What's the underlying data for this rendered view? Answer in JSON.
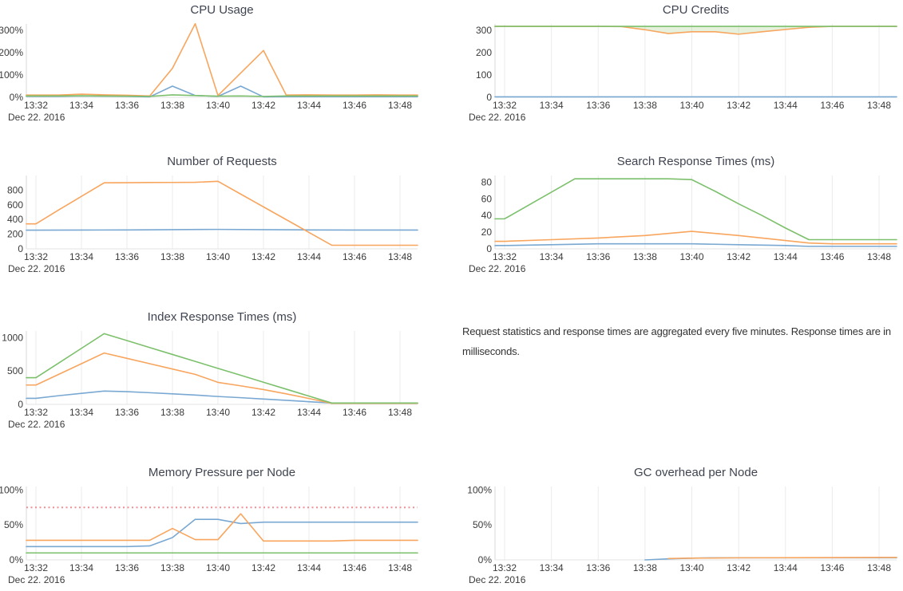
{
  "page": {
    "date_label": "Dec 22. 2016",
    "note": "Request statistics and response times are aggregated every five minutes. Response times are in milliseconds."
  },
  "colors": {
    "blue": "#79a8d2",
    "orange": "#f8a55e",
    "green": "#7cc06c",
    "red_dashed": "#ef8e95",
    "title_text": "#3f4450",
    "tick_text": "#3a3a3a",
    "grid": "#ebebeb",
    "axis": "#d9d9d9",
    "credits_fill": "rgba(150,200,120,0.25)"
  },
  "x_ticks": [
    "13:32",
    "13:34",
    "13:36",
    "13:38",
    "13:40",
    "13:42",
    "13:44",
    "13:46",
    "13:48"
  ],
  "chart_data": [
    {
      "type": "line",
      "id": "cpu-usage",
      "title": "CPU Usage",
      "col": 1,
      "grid": false,
      "vmax": 329,
      "y_ticks": [
        {
          "label": "0%",
          "v": 0
        },
        {
          "label": "100%",
          "v": 100
        },
        {
          "label": "200%",
          "v": 200
        },
        {
          "label": "300%",
          "v": 300
        }
      ],
      "x_unit": "minutes after 13:32",
      "series": [
        {
          "name": "node-blue",
          "color": "blue",
          "points": [
            [
              0,
              4
            ],
            [
              1,
              4
            ],
            [
              2,
              6
            ],
            [
              3,
              5
            ],
            [
              4,
              4
            ],
            [
              5,
              2
            ],
            [
              6,
              50
            ],
            [
              7,
              8
            ],
            [
              8,
              4
            ],
            [
              9,
              50
            ],
            [
              10,
              2
            ],
            [
              11,
              3
            ],
            [
              12,
              3
            ],
            [
              13,
              3
            ],
            [
              14,
              3
            ],
            [
              15,
              3
            ],
            [
              16,
              3
            ]
          ]
        },
        {
          "name": "node-orange",
          "color": "orange",
          "points": [
            [
              0,
              10
            ],
            [
              1,
              10
            ],
            [
              2,
              14
            ],
            [
              3,
              11
            ],
            [
              4,
              9
            ],
            [
              5,
              6
            ],
            [
              6,
              130
            ],
            [
              7,
              330
            ],
            [
              8,
              8
            ],
            [
              10,
              210
            ],
            [
              11,
              10
            ],
            [
              12,
              11
            ],
            [
              13,
              10
            ],
            [
              14,
              10
            ],
            [
              15,
              11
            ],
            [
              16,
              10
            ]
          ]
        },
        {
          "name": "node-green",
          "color": "green",
          "points": [
            [
              0,
              6
            ],
            [
              1,
              6
            ],
            [
              2,
              7
            ],
            [
              3,
              6
            ],
            [
              4,
              5
            ],
            [
              5,
              4
            ],
            [
              6,
              11
            ],
            [
              7,
              8
            ],
            [
              8,
              5
            ],
            [
              9,
              6
            ],
            [
              10,
              4
            ],
            [
              11,
              6
            ],
            [
              12,
              6
            ],
            [
              13,
              6
            ],
            [
              14,
              6
            ],
            [
              15,
              6
            ],
            [
              16,
              6
            ]
          ]
        }
      ]
    },
    {
      "type": "line",
      "id": "cpu-credits",
      "title": "CPU Credits",
      "col": 2,
      "grid": true,
      "vmax": 329,
      "y_ticks": [
        {
          "label": "0",
          "v": 0
        },
        {
          "label": "100",
          "v": 100
        },
        {
          "label": "200",
          "v": 200
        },
        {
          "label": "300",
          "v": 300
        }
      ],
      "fill_between": {
        "upper": 2,
        "lower": 1
      },
      "series": [
        {
          "name": "node-blue",
          "color": "blue",
          "points": [
            [
              0,
              2
            ],
            [
              16,
              2
            ]
          ]
        },
        {
          "name": "node-orange",
          "color": "orange",
          "points": [
            [
              0,
              318
            ],
            [
              4,
              318
            ],
            [
              5,
              317
            ],
            [
              6,
              303
            ],
            [
              7,
              286
            ],
            [
              8,
              294
            ],
            [
              9,
              294
            ],
            [
              10,
              283
            ],
            [
              11,
              294
            ],
            [
              12,
              304
            ],
            [
              13,
              314
            ],
            [
              14,
              318
            ],
            [
              15,
              318
            ],
            [
              16,
              318
            ]
          ]
        },
        {
          "name": "node-green",
          "color": "green",
          "points": [
            [
              0,
              318
            ],
            [
              16,
              318
            ]
          ]
        }
      ]
    },
    {
      "type": "line",
      "id": "number-of-requests",
      "title": "Number of Requests",
      "col": 1,
      "grid": true,
      "vmax": 1000,
      "y_ticks": [
        {
          "label": "0",
          "v": 0
        },
        {
          "label": "200",
          "v": 200
        },
        {
          "label": "400",
          "v": 400
        },
        {
          "label": "600",
          "v": 600
        },
        {
          "label": "800",
          "v": 800
        }
      ],
      "series": [
        {
          "name": "requests-blue",
          "color": "blue",
          "points": [
            [
              0,
              255
            ],
            [
              2,
              256
            ],
            [
              4,
              258
            ],
            [
              6,
              262
            ],
            [
              8,
              265
            ],
            [
              10,
              262
            ],
            [
              12,
              258
            ],
            [
              14,
              256
            ],
            [
              16,
              256
            ]
          ]
        },
        {
          "name": "requests-orange",
          "color": "orange",
          "points": [
            [
              0,
              340
            ],
            [
              1,
              530
            ],
            [
              2,
              715
            ],
            [
              3,
              900
            ],
            [
              4,
              902
            ],
            [
              5,
              904
            ],
            [
              6,
              905
            ],
            [
              7,
              907
            ],
            [
              8,
              920
            ],
            [
              9,
              746
            ],
            [
              10,
              572
            ],
            [
              11,
              398
            ],
            [
              12,
              224
            ],
            [
              13,
              50
            ],
            [
              14,
              49
            ],
            [
              15,
              49
            ],
            [
              16,
              49
            ]
          ]
        }
      ]
    },
    {
      "type": "line",
      "id": "search-response-times",
      "title": "Search Response Times (ms)",
      "col": 2,
      "grid": true,
      "vmax": 88,
      "y_ticks": [
        {
          "label": "0",
          "v": 0
        },
        {
          "label": "20",
          "v": 20
        },
        {
          "label": "40",
          "v": 40
        },
        {
          "label": "60",
          "v": 60
        },
        {
          "label": "80",
          "v": 80
        }
      ],
      "series": [
        {
          "name": "search-blue",
          "color": "blue",
          "points": [
            [
              0,
              4
            ],
            [
              2,
              5
            ],
            [
              4,
              6
            ],
            [
              6,
              6
            ],
            [
              8,
              6
            ],
            [
              10,
              5
            ],
            [
              12,
              4
            ],
            [
              13,
              3
            ],
            [
              16,
              3
            ]
          ]
        },
        {
          "name": "search-orange",
          "color": "orange",
          "points": [
            [
              0,
              9
            ],
            [
              2,
              11
            ],
            [
              4,
              13
            ],
            [
              6,
              16
            ],
            [
              8,
              21
            ],
            [
              10,
              16
            ],
            [
              12,
              10
            ],
            [
              13,
              7
            ],
            [
              14,
              6
            ],
            [
              16,
              6
            ]
          ]
        },
        {
          "name": "search-green",
          "color": "green",
          "points": [
            [
              0,
              36
            ],
            [
              1,
              52
            ],
            [
              2,
              68
            ],
            [
              3,
              84
            ],
            [
              7,
              84
            ],
            [
              8,
              83
            ],
            [
              9,
              69
            ],
            [
              10,
              54
            ],
            [
              11,
              40
            ],
            [
              12,
              25
            ],
            [
              13,
              11
            ],
            [
              16,
              11
            ]
          ]
        }
      ]
    },
    {
      "type": "line",
      "id": "index-response-times",
      "title": "Index Response Times (ms)",
      "col": 1,
      "grid": true,
      "vmax": 1100,
      "y_ticks": [
        {
          "label": "0",
          "v": 0
        },
        {
          "label": "500",
          "v": 500
        },
        {
          "label": "1000",
          "v": 1000
        }
      ],
      "series": [
        {
          "name": "index-blue",
          "color": "blue",
          "points": [
            [
              0,
              90
            ],
            [
              1,
              130
            ],
            [
              2,
              165
            ],
            [
              3,
              200
            ],
            [
              4,
              190
            ],
            [
              5,
              175
            ],
            [
              6,
              158
            ],
            [
              7,
              140
            ],
            [
              8,
              118
            ],
            [
              9,
              100
            ],
            [
              10,
              80
            ],
            [
              11,
              60
            ],
            [
              12,
              40
            ],
            [
              13,
              20
            ],
            [
              14,
              18
            ],
            [
              16,
              18
            ]
          ]
        },
        {
          "name": "index-orange",
          "color": "orange",
          "points": [
            [
              0,
              290
            ],
            [
              1,
              450
            ],
            [
              2,
              610
            ],
            [
              3,
              770
            ],
            [
              4,
              690
            ],
            [
              5,
              610
            ],
            [
              6,
              530
            ],
            [
              7,
              450
            ],
            [
              8,
              330
            ],
            [
              9,
              278
            ],
            [
              10,
              222
            ],
            [
              11,
              158
            ],
            [
              12,
              88
            ],
            [
              13,
              15
            ],
            [
              16,
              15
            ]
          ]
        },
        {
          "name": "index-green",
          "color": "green",
          "points": [
            [
              0,
              400
            ],
            [
              1,
              620
            ],
            [
              2,
              840
            ],
            [
              3,
              1060
            ],
            [
              4,
              956
            ],
            [
              5,
              852
            ],
            [
              6,
              748
            ],
            [
              7,
              644
            ],
            [
              8,
              540
            ],
            [
              9,
              436
            ],
            [
              10,
              332
            ],
            [
              11,
              228
            ],
            [
              12,
              124
            ],
            [
              13,
              20
            ],
            [
              16,
              20
            ]
          ]
        }
      ]
    },
    {
      "type": "line",
      "id": "memory-pressure-per-node",
      "title": "Memory Pressure per Node",
      "col": 1,
      "grid": true,
      "vmax": 105,
      "threshold": {
        "v": 75
      },
      "y_ticks": [
        {
          "label": "0%",
          "v": 0
        },
        {
          "label": "50%",
          "v": 50
        },
        {
          "label": "100%",
          "v": 100
        }
      ],
      "series": [
        {
          "name": "memory-blue",
          "color": "blue",
          "points": [
            [
              0,
              19
            ],
            [
              4,
              19
            ],
            [
              5,
              20
            ],
            [
              6,
              32
            ],
            [
              7,
              58
            ],
            [
              8,
              58
            ],
            [
              9,
              52
            ],
            [
              10,
              54
            ],
            [
              16,
              54
            ]
          ]
        },
        {
          "name": "memory-orange",
          "color": "orange",
          "points": [
            [
              0,
              28
            ],
            [
              5,
              28
            ],
            [
              6,
              45
            ],
            [
              7,
              29
            ],
            [
              8,
              29
            ],
            [
              9,
              66
            ],
            [
              10,
              27
            ],
            [
              13,
              27
            ],
            [
              14,
              28
            ],
            [
              16,
              28
            ]
          ]
        },
        {
          "name": "memory-green",
          "color": "green",
          "points": [
            [
              0,
              10
            ],
            [
              16,
              10
            ]
          ]
        }
      ]
    },
    {
      "type": "line",
      "id": "gc-overhead-per-node",
      "title": "GC overhead per Node",
      "col": 2,
      "grid": true,
      "vmax": 105,
      "y_ticks": [
        {
          "label": "0%",
          "v": 0
        },
        {
          "label": "50%",
          "v": 50
        },
        {
          "label": "100%",
          "v": 100
        }
      ],
      "series": [
        {
          "name": "gc-blue",
          "color": "blue",
          "extend_left": false,
          "points": [
            [
              6,
              0
            ],
            [
              7,
              1.5
            ],
            [
              8,
              2.5
            ],
            [
              9,
              3
            ],
            [
              16,
              3
            ]
          ]
        },
        {
          "name": "gc-orange",
          "color": "orange",
          "extend_left": false,
          "points": [
            [
              7,
              2
            ],
            [
              8,
              2.5
            ],
            [
              10,
              3
            ],
            [
              16,
              3.5
            ]
          ]
        }
      ]
    }
  ]
}
